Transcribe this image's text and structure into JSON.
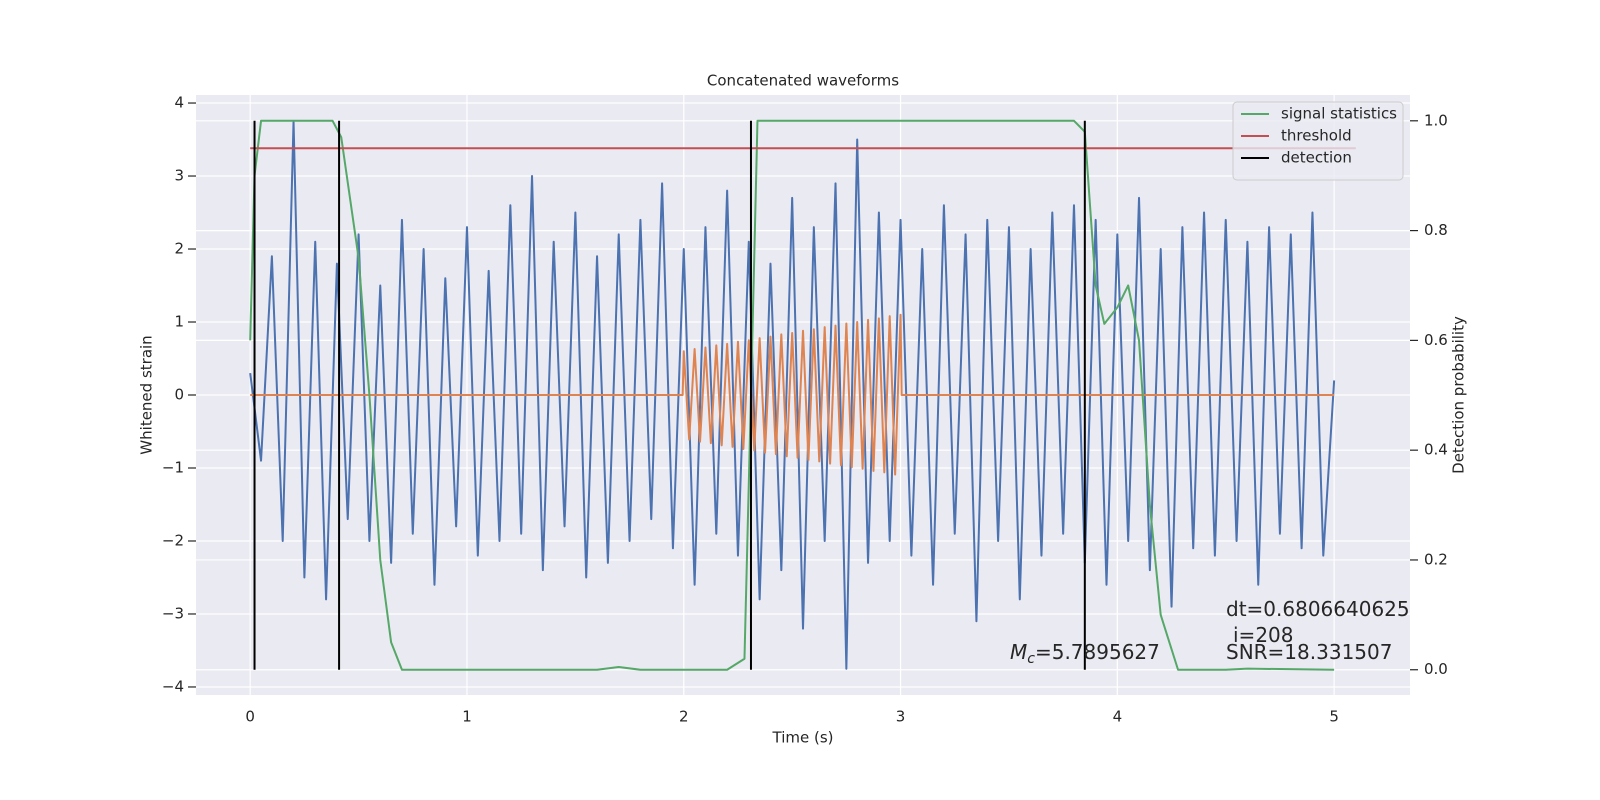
{
  "chart_data": {
    "type": "line",
    "title": "Concatenated waveforms",
    "xlabel": "Time (s)",
    "ylabel": "Whitened strain",
    "y2label": "Detection probability",
    "xlim": [
      -0.25,
      5.35
    ],
    "ylim": [
      -4.11,
      4.11
    ],
    "y2lim": [
      -0.046,
      1.047
    ],
    "xticks": [
      0,
      1,
      2,
      3,
      4,
      5
    ],
    "yticks": [
      {
        "value": -4,
        "label": "−4"
      },
      {
        "value": -3,
        "label": "−3"
      },
      {
        "value": -2,
        "label": "−2"
      },
      {
        "value": -1,
        "label": "−1"
      },
      0,
      1,
      2,
      3,
      4
    ],
    "y2ticks": [
      {
        "value": 0,
        "label": "0.0"
      },
      {
        "value": 0.2,
        "label": "0.2"
      },
      {
        "value": 0.4,
        "label": "0.4"
      },
      {
        "value": 0.6,
        "label": "0.6"
      },
      {
        "value": 0.8,
        "label": "0.8"
      },
      {
        "value": 1,
        "label": "1.0"
      }
    ],
    "grid": true,
    "legend": "upper right",
    "series": [
      {
        "color": "#4c72b0",
        "x": [
          0,
          0.05,
          0.1,
          0.15,
          0.2,
          0.25,
          0.3,
          0.35,
          0.4,
          0.45,
          0.5,
          0.55,
          0.6,
          0.65,
          0.7,
          0.75,
          0.8,
          0.85,
          0.9,
          0.95,
          1,
          1.05,
          1.1,
          1.15,
          1.2,
          1.25,
          1.3,
          1.35,
          1.4,
          1.45,
          1.5,
          1.55,
          1.6,
          1.65,
          1.7,
          1.75,
          1.8,
          1.85,
          1.9,
          1.95,
          2,
          2.05,
          2.1,
          2.15,
          2.2,
          2.25,
          2.3,
          2.35,
          2.4,
          2.45,
          2.5,
          2.55,
          2.6,
          2.65,
          2.7,
          2.75,
          2.8,
          2.85,
          2.9,
          2.95,
          3,
          3.05,
          3.1,
          3.15,
          3.2,
          3.25,
          3.3,
          3.35,
          3.4,
          3.45,
          3.5,
          3.55,
          3.6,
          3.65,
          3.7,
          3.75,
          3.8,
          3.85,
          3.9,
          3.95,
          4,
          4.05,
          4.1,
          4.15,
          4.2,
          4.25,
          4.3,
          4.35,
          4.4,
          4.45,
          4.5,
          4.55,
          4.6,
          4.65,
          4.7,
          4.75,
          4.8,
          4.85,
          4.9,
          4.95,
          5
        ],
        "values": [
          0.3,
          -0.9,
          1.9,
          -2.0,
          3.75,
          -2.5,
          2.1,
          -2.8,
          1.8,
          -1.7,
          2.2,
          -2.0,
          1.5,
          -2.3,
          2.4,
          -1.9,
          2.0,
          -2.6,
          1.6,
          -1.8,
          2.3,
          -2.2,
          1.7,
          -2.0,
          2.6,
          -1.9,
          3.0,
          -2.4,
          2.1,
          -1.8,
          2.5,
          -2.5,
          1.9,
          -2.3,
          2.2,
          -2.0,
          2.4,
          -1.7,
          2.9,
          -2.1,
          2.0,
          -2.6,
          2.3,
          -1.9,
          2.8,
          -2.2,
          2.1,
          -2.8,
          1.8,
          -2.4,
          2.7,
          -3.2,
          2.3,
          -2.0,
          2.9,
          -3.75,
          3.5,
          -2.3,
          2.5,
          -2.0,
          2.4,
          -2.2,
          2.0,
          -2.6,
          2.6,
          -1.9,
          2.2,
          -3.1,
          2.4,
          -2.0,
          2.3,
          -2.8,
          2.0,
          -2.2,
          2.5,
          -1.9,
          2.6,
          -2.3,
          2.4,
          -2.6,
          2.2,
          -2.0,
          2.7,
          -2.4,
          2.0,
          -2.9,
          2.3,
          -2.1,
          2.5,
          -2.2,
          2.4,
          -2.0,
          2.1,
          -2.6,
          2.3,
          -1.9,
          2.2,
          -2.1,
          2.5,
          -2.2,
          0.2
        ]
      },
      {
        "color": "#dd8452",
        "x": [
          0,
          1.995,
          2.0,
          2.025,
          2.05,
          2.075,
          2.1,
          2.125,
          2.15,
          2.175,
          2.2,
          2.225,
          2.25,
          2.275,
          2.3,
          2.325,
          2.35,
          2.375,
          2.4,
          2.425,
          2.45,
          2.475,
          2.5,
          2.525,
          2.55,
          2.575,
          2.6,
          2.625,
          2.65,
          2.675,
          2.7,
          2.725,
          2.75,
          2.775,
          2.8,
          2.825,
          2.85,
          2.875,
          2.9,
          2.925,
          2.95,
          2.975,
          3.0,
          3.005,
          5
        ],
        "values": [
          0,
          0,
          0.6,
          -0.61,
          0.63,
          -0.64,
          0.65,
          -0.66,
          0.68,
          -0.69,
          0.7,
          -0.71,
          0.73,
          -0.74,
          0.75,
          -0.76,
          0.78,
          -0.79,
          0.8,
          -0.81,
          0.83,
          -0.84,
          0.85,
          -0.86,
          0.88,
          -0.89,
          0.9,
          -0.91,
          0.93,
          -0.94,
          0.95,
          -0.96,
          0.98,
          -0.99,
          1.0,
          -1.01,
          1.03,
          -1.04,
          1.05,
          -1.06,
          1.08,
          -1.09,
          1.1,
          0,
          0
        ]
      },
      {
        "name": "signal statistics",
        "color": "#55a868",
        "axis": "y2",
        "x": [
          0,
          0.02,
          0.05,
          0.38,
          0.42,
          0.5,
          0.55,
          0.6,
          0.65,
          0.7,
          1.6,
          1.7,
          1.8,
          2.2,
          2.28,
          2.31,
          2.34,
          3.8,
          3.85,
          3.9,
          3.94,
          4.0,
          4.05,
          4.1,
          4.15,
          4.2,
          4.28,
          4.5,
          4.6,
          5
        ],
        "values": [
          0.6,
          0.9,
          1.0,
          1.0,
          0.97,
          0.75,
          0.5,
          0.2,
          0.05,
          0.0,
          0.0,
          0.005,
          0.0,
          0.0,
          0.02,
          0.5,
          1.0,
          1.0,
          0.98,
          0.7,
          0.63,
          0.66,
          0.7,
          0.6,
          0.3,
          0.1,
          0.0,
          0.0,
          0.002,
          0.0
        ]
      },
      {
        "name": "threshold",
        "color": "#c44e52",
        "axis": "y2",
        "x": [
          0,
          5.1
        ],
        "values": [
          0.95,
          0.95
        ]
      }
    ],
    "detections": {
      "name": "detection",
      "color": "#000000",
      "x": [
        0.02,
        0.41,
        2.31,
        3.85
      ],
      "range": [
        0,
        1
      ]
    },
    "annotations": {
      "dt": "dt=0.6806640625",
      "i": "i=208",
      "snr": "SNR=18.331507",
      "mc": {
        "symbol": "M",
        "subscript": "c",
        "text": "=5.7895627"
      }
    }
  }
}
